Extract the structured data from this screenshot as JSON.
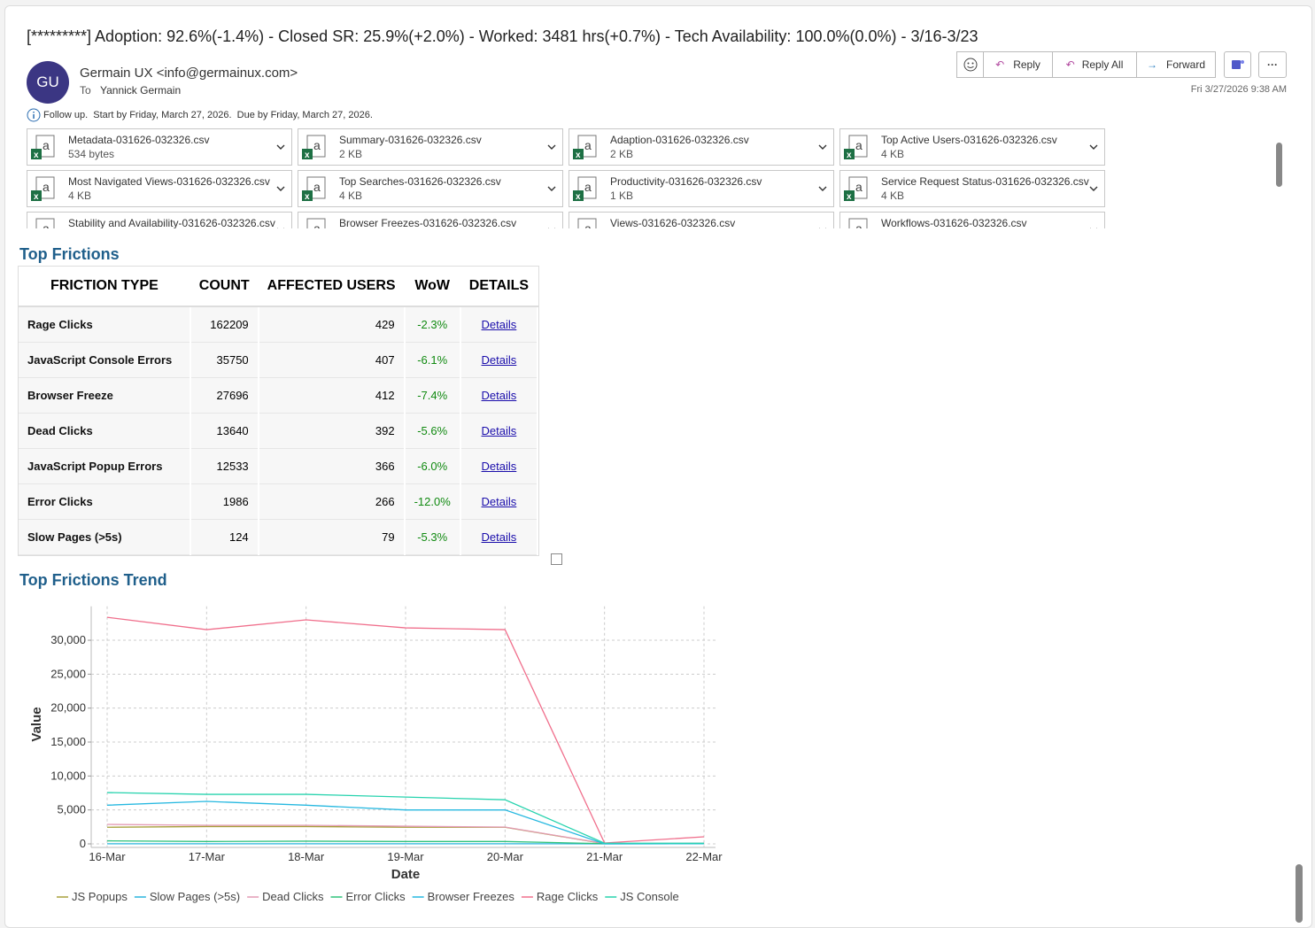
{
  "email": {
    "subject": "[*********] Adoption: 92.6%(-1.4%) - Closed SR: 25.9%(+2.0%) - Worked: 3481 hrs(+0.7%) - Tech Availability: 100.0%(0.0%) - 3/16-3/23",
    "avatar": "GU",
    "sender": "Germain UX <info@germainux.com>",
    "to_label": "To",
    "to": "Yannick Germain",
    "buttons": [
      "Reply",
      "Reply All",
      "Forward"
    ],
    "date": "Fri 3/27/2026 9:38 AM",
    "followup": "Follow up.  Start by Friday, March 27, 2026.  Due by Friday, March 27, 2026.",
    "attachments": [
      {
        "name": "Metadata-031626-032326.csv",
        "size": "534 bytes"
      },
      {
        "name": "Summary-031626-032326.csv",
        "size": "2 KB"
      },
      {
        "name": "Adaption-031626-032326.csv",
        "size": "2 KB"
      },
      {
        "name": "Top Active Users-031626-032326.csv",
        "size": "4 KB"
      },
      {
        "name": "Most Navigated Views-031626-032326.csv",
        "size": "4 KB"
      },
      {
        "name": "Top Searches-031626-032326.csv",
        "size": "4 KB"
      },
      {
        "name": "Productivity-031626-032326.csv",
        "size": "1 KB"
      },
      {
        "name": "Service Request Status-031626-032326.csv",
        "size": "4 KB"
      },
      {
        "name": "Stability and Availability-031626-032326.csv"
      },
      {
        "name": "Browser Freezes-031626-032326.csv"
      },
      {
        "name": "Views-031626-032326.csv"
      },
      {
        "name": "Workflows-031626-032326.csv"
      }
    ]
  },
  "frictions": {
    "title": "Top Frictions",
    "headers": [
      "FRICTION TYPE",
      "COUNT",
      "AFFECTED USERS",
      "WoW",
      "DETAILS"
    ],
    "rows": [
      [
        "Rage Clicks",
        "162209",
        "429",
        "-2.3%",
        "Details"
      ],
      [
        "JavaScript Console Errors",
        "35750",
        "407",
        "-6.1%",
        "Details"
      ],
      [
        "Browser Freeze",
        "27696",
        "412",
        "-7.4%",
        "Details"
      ],
      [
        "Dead Clicks",
        "13640",
        "392",
        "-5.6%",
        "Details"
      ],
      [
        "JavaScript Popup Errors",
        "12533",
        "366",
        "-6.0%",
        "Details"
      ],
      [
        "Error Clicks",
        "1986",
        "266",
        "-12.0%",
        "Details"
      ],
      [
        "Slow Pages (>5s)",
        "124",
        "79",
        "-5.3%",
        "Details"
      ]
    ]
  },
  "chart_data": {
    "type": "line",
    "title": "Top Frictions Trend",
    "xlabel": "Date",
    "ylabel": "Value",
    "x": [
      "16-Mar",
      "17-Mar",
      "18-Mar",
      "19-Mar",
      "20-Mar",
      "21-Mar",
      "22-Mar"
    ],
    "ylim": [
      0,
      35000
    ],
    "yticks": [
      0,
      {
        "value": 5000,
        "label": "5,000"
      },
      {
        "value": 10000,
        "label": "10,000"
      },
      {
        "value": 15000,
        "label": "15,000"
      },
      {
        "value": 20000,
        "label": "20,000"
      },
      {
        "value": 25000,
        "label": "25,000"
      },
      {
        "value": 30000,
        "label": "30,000"
      }
    ],
    "grid": true,
    "series": [
      {
        "name": "JS Popups",
        "color": "#a8a03c",
        "values": [
          2450,
          2550,
          2550,
          2450,
          2450,
          30,
          50
        ]
      },
      {
        "name": "Slow Pages (>5s)",
        "color": "#2ab4de",
        "values": [
          20,
          20,
          20,
          20,
          20,
          10,
          14
        ]
      },
      {
        "name": "Dead Clicks",
        "color": "#e39ab4",
        "values": [
          2870,
          2740,
          2740,
          2600,
          2480,
          50,
          100
        ]
      },
      {
        "name": "Error Clicks",
        "color": "#2fc27a",
        "values": [
          450,
          350,
          400,
          350,
          350,
          30,
          50
        ]
      },
      {
        "name": "Browser Freezes",
        "color": "#26b8e0",
        "values": [
          5700,
          6260,
          5700,
          5000,
          5000,
          0,
          30
        ]
      },
      {
        "name": "Rage Clicks",
        "color": "#f06f8c",
        "values": [
          33380,
          31560,
          33000,
          31820,
          31560,
          130,
          1040
        ]
      },
      {
        "name": "JS Console",
        "color": "#27d3ae",
        "values": [
          7560,
          7300,
          7300,
          6900,
          6500,
          100,
          100
        ]
      }
    ]
  }
}
